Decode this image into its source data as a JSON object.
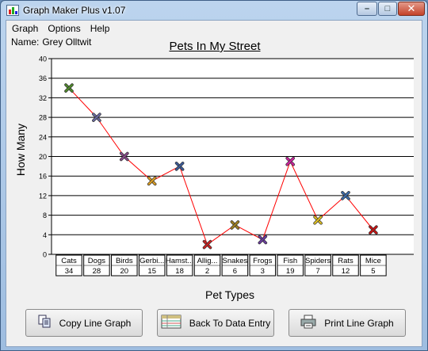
{
  "window": {
    "title": "Graph Maker Plus v1.07",
    "buttons": {
      "minimize": "–",
      "maximize": "□",
      "close": "✕"
    }
  },
  "menu": {
    "items": [
      "Graph",
      "Options",
      "Help"
    ]
  },
  "name_label": {
    "prefix": "Name:",
    "value": "Grey Olltwit"
  },
  "buttons": {
    "copy": "Copy Line Graph",
    "back": "Back To Data Entry",
    "print": "Print Line Graph"
  },
  "chart_data": {
    "type": "line",
    "title": "Pets In My Street",
    "xlabel": "Pet Types",
    "ylabel": "How Many",
    "ylim": [
      0,
      40
    ],
    "yticks": [
      0,
      4,
      8,
      12,
      16,
      20,
      24,
      28,
      32,
      36,
      40
    ],
    "grid": true,
    "line_color": "#ff0000",
    "categories": [
      "Cats",
      "Dogs",
      "Birds",
      "Gerbi...",
      "Hamst...",
      "Allig...",
      "Snakes",
      "Frogs",
      "Fish",
      "Spiders",
      "Rats",
      "Mice"
    ],
    "values": [
      34,
      28,
      20,
      15,
      18,
      2,
      6,
      3,
      19,
      7,
      12,
      5
    ],
    "marker_colors": [
      "#4f8a2a",
      "#6a6aa0",
      "#8a4a8a",
      "#e0a020",
      "#3a5a9a",
      "#cc2020",
      "#a08020",
      "#6a3aa0",
      "#d020a0",
      "#e0c020",
      "#3a6aaa",
      "#cc1010"
    ]
  }
}
